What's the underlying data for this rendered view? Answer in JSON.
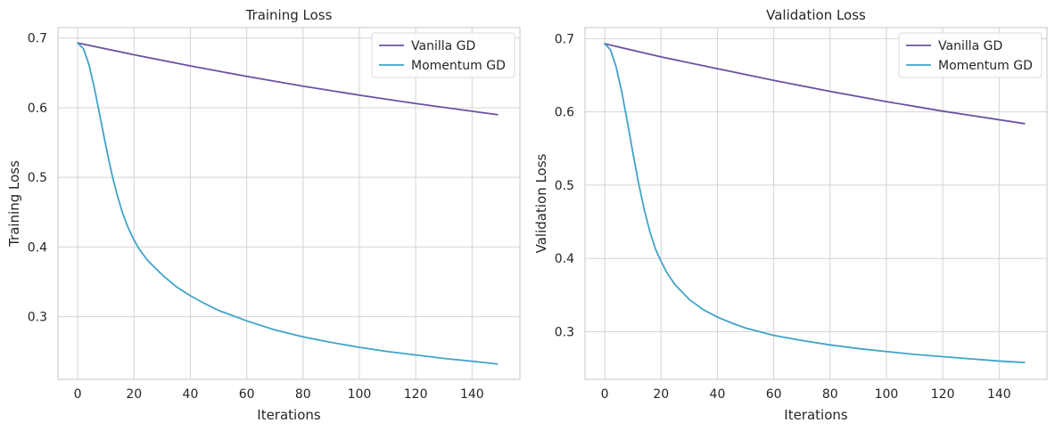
{
  "colors": {
    "vanilla": "#6a51a3",
    "momentum": "#41a3c8",
    "grid": "#d4d4d4",
    "frame": "#cfcfcf"
  },
  "chart_data": [
    {
      "type": "line",
      "title": "Training Loss",
      "xlabel": "Iterations",
      "ylabel": "Training Loss",
      "xlim": [
        -7,
        157
      ],
      "ylim": [
        0.21,
        0.715
      ],
      "xticks": [
        0,
        20,
        40,
        60,
        80,
        100,
        120,
        140
      ],
      "yticks": [
        0.3,
        0.4,
        0.5,
        0.6,
        0.7
      ],
      "grid": true,
      "legend": "top-right",
      "series": [
        {
          "name": "Vanilla GD",
          "x": [
            0,
            20,
            40,
            60,
            80,
            100,
            120,
            149
          ],
          "y": [
            0.693,
            0.676,
            0.66,
            0.645,
            0.631,
            0.618,
            0.606,
            0.59
          ]
        },
        {
          "name": "Momentum GD",
          "x": [
            0,
            2,
            4,
            6,
            8,
            10,
            12,
            14,
            16,
            18,
            20,
            22,
            25,
            30,
            35,
            40,
            45,
            50,
            60,
            70,
            80,
            90,
            100,
            110,
            120,
            130,
            140,
            149
          ],
          "y": [
            0.693,
            0.685,
            0.662,
            0.627,
            0.586,
            0.545,
            0.507,
            0.475,
            0.448,
            0.427,
            0.41,
            0.396,
            0.38,
            0.36,
            0.343,
            0.33,
            0.319,
            0.309,
            0.294,
            0.281,
            0.271,
            0.263,
            0.256,
            0.25,
            0.245,
            0.24,
            0.236,
            0.232
          ]
        }
      ]
    },
    {
      "type": "line",
      "title": "Validation Loss",
      "xlabel": "Iterations",
      "ylabel": "Validation Loss",
      "xlim": [
        -7,
        157
      ],
      "ylim": [
        0.235,
        0.715
      ],
      "xticks": [
        0,
        20,
        40,
        60,
        80,
        100,
        120,
        140
      ],
      "yticks": [
        0.3,
        0.4,
        0.5,
        0.6,
        0.7
      ],
      "grid": true,
      "legend": "top-right",
      "series": [
        {
          "name": "Vanilla GD",
          "x": [
            0,
            20,
            40,
            60,
            80,
            100,
            120,
            149
          ],
          "y": [
            0.693,
            0.675,
            0.659,
            0.643,
            0.628,
            0.614,
            0.601,
            0.584
          ]
        },
        {
          "name": "Momentum GD",
          "x": [
            0,
            2,
            4,
            6,
            8,
            10,
            12,
            14,
            16,
            18,
            20,
            22,
            25,
            30,
            35,
            40,
            45,
            50,
            60,
            70,
            80,
            90,
            100,
            110,
            120,
            130,
            140,
            149
          ],
          "y": [
            0.693,
            0.685,
            0.662,
            0.628,
            0.587,
            0.544,
            0.503,
            0.467,
            0.437,
            0.413,
            0.396,
            0.381,
            0.364,
            0.344,
            0.33,
            0.32,
            0.312,
            0.305,
            0.295,
            0.288,
            0.282,
            0.277,
            0.273,
            0.269,
            0.266,
            0.263,
            0.26,
            0.258
          ]
        }
      ]
    }
  ]
}
